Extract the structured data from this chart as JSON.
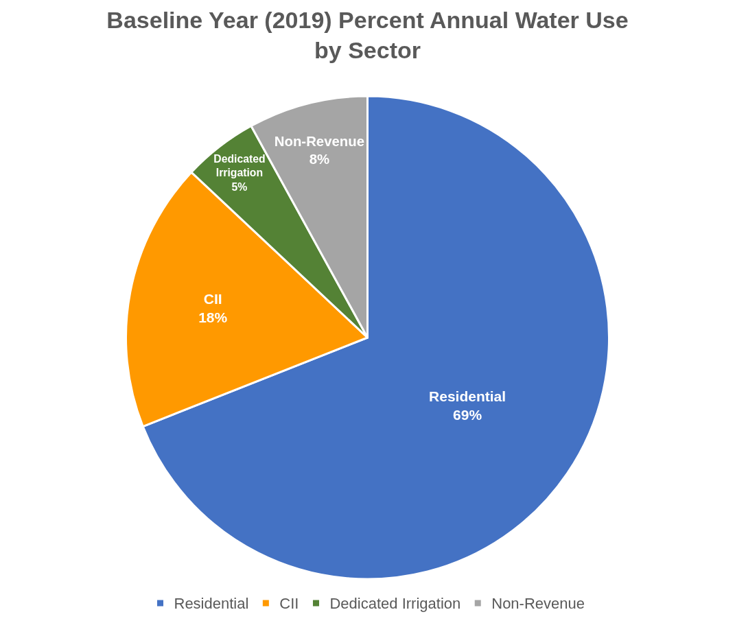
{
  "chart_data": {
    "type": "pie",
    "title": "Baseline Year (2019) Percent Annual Water Use\nby Sector",
    "categories": [
      "Residential",
      "CII",
      "Dedicated Irrigation",
      "Non-Revenue"
    ],
    "values": [
      69,
      18,
      5,
      8
    ],
    "value_labels": [
      "69%",
      "18%",
      "5%",
      "8%"
    ],
    "colors": [
      "#4472c4",
      "#ff9900",
      "#548235",
      "#a5a5a5"
    ],
    "legend": "bottom"
  }
}
